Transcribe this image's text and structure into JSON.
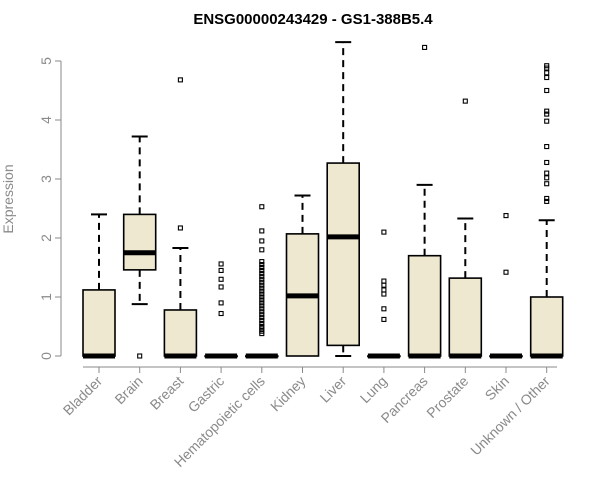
{
  "chart_data": {
    "type": "box",
    "title": "ENSG00000243429 - GS1-388B5.4",
    "xlabel": "",
    "ylabel": "Expression",
    "ylim": [
      0,
      5.35
    ],
    "yticks": [
      0,
      1,
      2,
      3,
      4,
      5
    ],
    "grid": false,
    "box_color": "#efe8d0",
    "categories": [
      "Bladder",
      "Brain",
      "Breast",
      "Gastric",
      "Hematopoietic cells",
      "Kidney",
      "Liver",
      "Lung",
      "Pancreas",
      "Prostate",
      "Skin",
      "Unknown / Other"
    ],
    "boxes": [
      {
        "min": 0,
        "q1": 0,
        "median": 0,
        "q3": 1.12,
        "max": 2.4,
        "outliers": []
      },
      {
        "min": 0.88,
        "q1": 1.46,
        "median": 1.75,
        "q3": 2.4,
        "max": 3.72,
        "outliers": [
          0
        ]
      },
      {
        "min": 0,
        "q1": 0,
        "median": 0,
        "q3": 0.78,
        "max": 1.83,
        "outliers": [
          2.17,
          4.68
        ]
      },
      {
        "min": 0,
        "q1": 0,
        "median": 0,
        "q3": 0,
        "max": 0,
        "outliers": [
          0.72,
          0.9,
          1.17,
          1.3,
          1.45,
          1.56
        ]
      },
      {
        "min": 0,
        "q1": 0,
        "median": 0,
        "q3": 0,
        "max": 0,
        "outliers": [
          0.38,
          0.42,
          0.46,
          0.5,
          0.55,
          0.6,
          0.65,
          0.7,
          0.75,
          0.8,
          0.85,
          0.9,
          0.95,
          1.0,
          1.05,
          1.1,
          1.15,
          1.2,
          1.25,
          1.3,
          1.35,
          1.4,
          1.45,
          1.5,
          1.55,
          1.6,
          1.8,
          1.95,
          2.12,
          2.53
        ]
      },
      {
        "min": 0,
        "q1": 0,
        "median": 1.02,
        "q3": 2.07,
        "max": 2.72,
        "outliers": []
      },
      {
        "min": 0,
        "q1": 0.18,
        "median": 2.02,
        "q3": 3.27,
        "max": 5.32,
        "outliers": []
      },
      {
        "min": 0,
        "q1": 0,
        "median": 0,
        "q3": 0,
        "max": 0,
        "outliers": [
          0.62,
          0.8,
          1.05,
          1.12,
          1.2,
          1.27,
          2.1
        ]
      },
      {
        "min": 0,
        "q1": 0,
        "median": 0,
        "q3": 1.7,
        "max": 2.9,
        "outliers": [
          5.23
        ]
      },
      {
        "min": 0,
        "q1": 0,
        "median": 0,
        "q3": 1.32,
        "max": 2.33,
        "outliers": [
          4.32
        ]
      },
      {
        "min": 0,
        "q1": 0,
        "median": 0,
        "q3": 0,
        "max": 0,
        "outliers": [
          1.42,
          2.38
        ]
      },
      {
        "min": 0,
        "q1": 0,
        "median": 0,
        "q3": 1.0,
        "max": 2.3,
        "outliers": [
          2.62,
          2.67,
          2.92,
          3.02,
          3.1,
          3.28,
          3.55,
          3.98,
          4.1,
          4.15,
          4.5,
          4.72,
          4.8,
          4.88,
          4.92
        ]
      }
    ]
  }
}
